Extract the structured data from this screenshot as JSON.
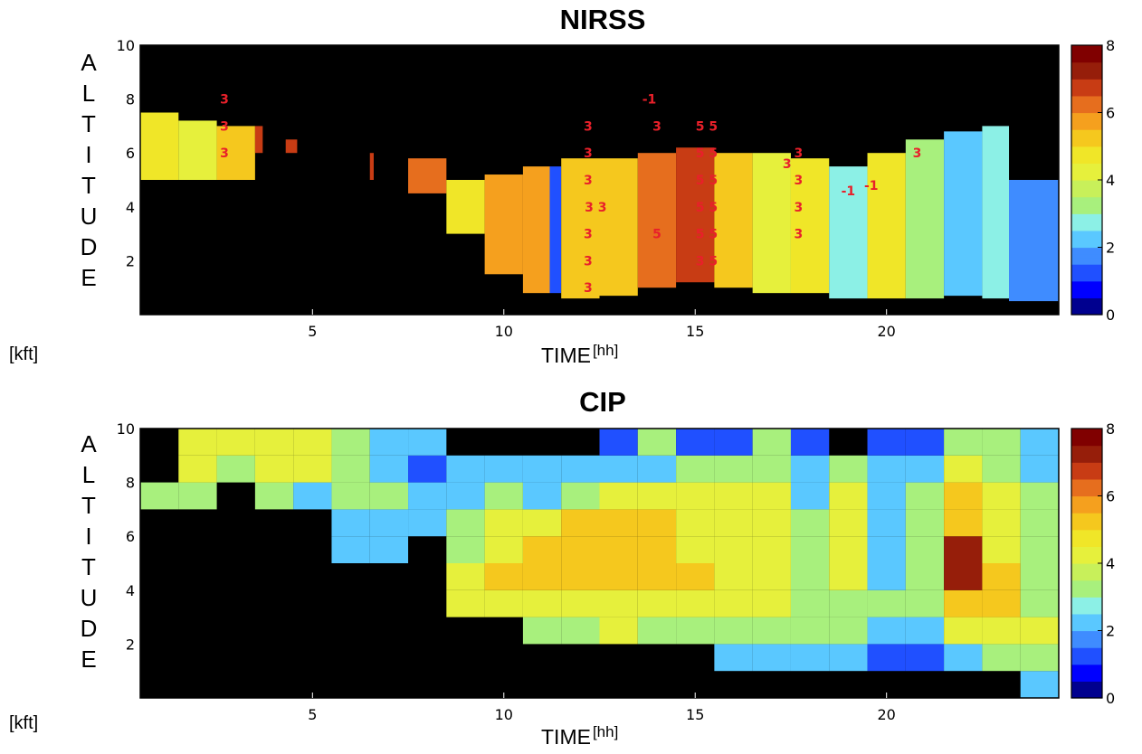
{
  "colors": {
    "background": "#000000",
    "text": "#000000",
    "annotation": "#e8202a"
  },
  "colormap": [
    "#00008f",
    "#0000ff",
    "#2050ff",
    "#3f8cff",
    "#5ac8ff",
    "#8cf0e6",
    "#a8f07d",
    "#c8f05a",
    "#e6f03c",
    "#f0e628",
    "#f5c81e",
    "#f5a01e",
    "#e66e1e",
    "#c83c14",
    "#961e0a",
    "#800000"
  ],
  "figure": {
    "ylabel_letters": [
      "A",
      "L",
      "T",
      "I",
      "T",
      "U",
      "D",
      "E"
    ],
    "yunit": "[kft]",
    "xlabel": "TIME",
    "xunit": "[hh]"
  },
  "chart_data": [
    {
      "type": "heatmap",
      "title": "NIRSS",
      "xlabel": "TIME [hh]",
      "ylabel": "ALTITUDE [kft]",
      "xlim": [
        0.5,
        24.5
      ],
      "ylim": [
        0,
        10
      ],
      "xticks": [
        5,
        10,
        15,
        20
      ],
      "yticks": [
        2,
        4,
        6,
        8,
        10
      ],
      "grid": false,
      "colorbar": {
        "range": [
          0,
          8
        ],
        "ticks": [
          0,
          2,
          4,
          6,
          8
        ],
        "placement": "right"
      },
      "profile_columns": [
        {
          "x0": 0.5,
          "x1": 1.5,
          "base": 5.0,
          "top": 7.5,
          "value": 4.5
        },
        {
          "x0": 1.5,
          "x1": 2.5,
          "base": 5.0,
          "top": 7.2,
          "value": 4.3
        },
        {
          "x0": 2.5,
          "x1": 3.5,
          "base": 5.0,
          "top": 7.0,
          "value": 5.3
        },
        {
          "x0": 3.5,
          "x1": 3.7,
          "base": 6.0,
          "top": 7.0,
          "value": 6.5
        },
        {
          "x0": 4.3,
          "x1": 4.6,
          "base": 6.0,
          "top": 6.5,
          "value": 6.8
        },
        {
          "x0": 6.5,
          "x1": 6.6,
          "base": 5.0,
          "top": 6.0,
          "value": 6.5
        },
        {
          "x0": 7.5,
          "x1": 8.5,
          "base": 4.5,
          "top": 5.8,
          "value": 6.3
        },
        {
          "x0": 8.5,
          "x1": 9.5,
          "base": 3.0,
          "top": 5.0,
          "value": 4.8
        },
        {
          "x0": 9.5,
          "x1": 10.5,
          "base": 1.5,
          "top": 5.2,
          "value": 5.5
        },
        {
          "x0": 10.5,
          "x1": 11.2,
          "base": 0.8,
          "top": 5.5,
          "value": 5.5
        },
        {
          "x0": 11.2,
          "x1": 11.5,
          "base": 0.8,
          "top": 5.5,
          "value": 1.0
        },
        {
          "x0": 11.5,
          "x1": 12.5,
          "base": 0.6,
          "top": 5.8,
          "value": 5.0
        },
        {
          "x0": 12.5,
          "x1": 13.5,
          "base": 0.7,
          "top": 5.8,
          "value": 5.0
        },
        {
          "x0": 13.5,
          "x1": 14.5,
          "base": 1.0,
          "top": 6.0,
          "value": 6.2
        },
        {
          "x0": 14.5,
          "x1": 15.5,
          "base": 1.2,
          "top": 6.2,
          "value": 6.5
        },
        {
          "x0": 15.5,
          "x1": 16.5,
          "base": 1.0,
          "top": 6.0,
          "value": 5.0
        },
        {
          "x0": 16.5,
          "x1": 17.5,
          "base": 0.8,
          "top": 6.0,
          "value": 4.2
        },
        {
          "x0": 17.5,
          "x1": 18.5,
          "base": 0.8,
          "top": 5.8,
          "value": 4.8
        },
        {
          "x0": 18.5,
          "x1": 19.5,
          "base": 0.6,
          "top": 5.5,
          "value": 2.5
        },
        {
          "x0": 19.5,
          "x1": 20.5,
          "base": 0.6,
          "top": 6.0,
          "value": 4.5
        },
        {
          "x0": 20.5,
          "x1": 21.5,
          "base": 0.6,
          "top": 6.5,
          "value": 3.0
        },
        {
          "x0": 21.5,
          "x1": 22.5,
          "base": 0.7,
          "top": 6.8,
          "value": 2.0
        },
        {
          "x0": 22.5,
          "x1": 23.2,
          "base": 0.6,
          "top": 7.0,
          "value": 2.8
        },
        {
          "x0": 23.2,
          "x1": 24.5,
          "base": 0.5,
          "top": 5.0,
          "value": 1.8
        }
      ],
      "annotations": [
        {
          "text": "3",
          "x": 2.7,
          "y": 8
        },
        {
          "text": "3",
          "x": 2.7,
          "y": 7
        },
        {
          "text": "3",
          "x": 2.7,
          "y": 6
        },
        {
          "text": "-1",
          "x": 13.8,
          "y": 8
        },
        {
          "text": "3",
          "x": 12.2,
          "y": 7
        },
        {
          "text": "3",
          "x": 14.0,
          "y": 7
        },
        {
          "text": "5 5",
          "x": 15.3,
          "y": 7
        },
        {
          "text": "3",
          "x": 12.2,
          "y": 6
        },
        {
          "text": "5 5",
          "x": 15.3,
          "y": 6
        },
        {
          "text": "3",
          "x": 17.7,
          "y": 6
        },
        {
          "text": "3",
          "x": 17.4,
          "y": 5.6
        },
        {
          "text": "3",
          "x": 20.8,
          "y": 6
        },
        {
          "text": "3",
          "x": 12.2,
          "y": 5
        },
        {
          "text": "5 5",
          "x": 15.3,
          "y": 5
        },
        {
          "text": "3",
          "x": 17.7,
          "y": 5
        },
        {
          "text": "-1",
          "x": 19.0,
          "y": 4.6
        },
        {
          "text": "-1",
          "x": 19.6,
          "y": 4.8
        },
        {
          "text": "3 3",
          "x": 12.4,
          "y": 4
        },
        {
          "text": "5 5",
          "x": 15.3,
          "y": 4
        },
        {
          "text": "3",
          "x": 17.7,
          "y": 4
        },
        {
          "text": "3",
          "x": 12.2,
          "y": 3
        },
        {
          "text": "5",
          "x": 14.0,
          "y": 3
        },
        {
          "text": "5 5",
          "x": 15.3,
          "y": 3
        },
        {
          "text": "3",
          "x": 17.7,
          "y": 3
        },
        {
          "text": "3",
          "x": 12.2,
          "y": 2
        },
        {
          "text": "3 5",
          "x": 15.3,
          "y": 2
        },
        {
          "text": "3",
          "x": 12.2,
          "y": 1
        }
      ]
    },
    {
      "type": "heatmap",
      "title": "CIP",
      "xlabel": "TIME [hh]",
      "ylabel": "ALTITUDE [kft]",
      "xlim": [
        0.5,
        24.5
      ],
      "ylim": [
        0,
        10
      ],
      "xticks": [
        5,
        10,
        15,
        20
      ],
      "yticks": [
        2,
        4,
        6,
        8,
        10
      ],
      "grid": false,
      "colorbar": {
        "range": [
          0,
          8
        ],
        "ticks": [
          0,
          2,
          4,
          6,
          8
        ],
        "placement": "right"
      },
      "x_centers": [
        1,
        2,
        3,
        4,
        5,
        6,
        7,
        8,
        9,
        10,
        11,
        12,
        13,
        14,
        15,
        16,
        17,
        18,
        19,
        20,
        21,
        22,
        23,
        24
      ],
      "y_centers": [
        0.5,
        1.5,
        2.5,
        3.5,
        4.5,
        5.5,
        6.5,
        7.5,
        8.5,
        9.5
      ],
      "values": [
        [
          null,
          null,
          null,
          null,
          null,
          null,
          null,
          null,
          null,
          null,
          null,
          null,
          null,
          null,
          null,
          null,
          null,
          null,
          null,
          null,
          null,
          null,
          null,
          2
        ],
        [
          null,
          null,
          null,
          null,
          null,
          null,
          null,
          null,
          null,
          null,
          null,
          null,
          null,
          null,
          null,
          2,
          2,
          2,
          2,
          1,
          1,
          2,
          3,
          3
        ],
        [
          null,
          null,
          null,
          null,
          null,
          null,
          null,
          null,
          null,
          null,
          3,
          3,
          4,
          3,
          3,
          3,
          3,
          3,
          3,
          2,
          2,
          4,
          4,
          4
        ],
        [
          null,
          null,
          null,
          null,
          null,
          null,
          null,
          null,
          4,
          4,
          4,
          4,
          4,
          4,
          4,
          4,
          4,
          3,
          3,
          3,
          3,
          5,
          5,
          3
        ],
        [
          null,
          null,
          null,
          null,
          null,
          null,
          null,
          null,
          4,
          5,
          5,
          5,
          5,
          5,
          5,
          4,
          4,
          3,
          4,
          2,
          3,
          7,
          5,
          3
        ],
        [
          null,
          null,
          null,
          null,
          null,
          2,
          2,
          null,
          3,
          4,
          5,
          5,
          5,
          5,
          4,
          4,
          4,
          3,
          4,
          2,
          3,
          7,
          4,
          3
        ],
        [
          null,
          null,
          null,
          null,
          null,
          2,
          2,
          2,
          3,
          4,
          4,
          5,
          5,
          5,
          4,
          4,
          4,
          3,
          4,
          2,
          3,
          5,
          4,
          3
        ],
        [
          3,
          3,
          null,
          3,
          2,
          3,
          3,
          2,
          2,
          3,
          2,
          3,
          4,
          4,
          4,
          4,
          4,
          2,
          4,
          2,
          3,
          5,
          4,
          3
        ],
        [
          null,
          4,
          3,
          4,
          4,
          3,
          2,
          1,
          2,
          2,
          2,
          2,
          2,
          2,
          3,
          3,
          3,
          2,
          3,
          2,
          2,
          4,
          3,
          2
        ],
        [
          null,
          4,
          4,
          4,
          4,
          3,
          2,
          2,
          null,
          null,
          null,
          null,
          1,
          3,
          1,
          1,
          3,
          1,
          null,
          1,
          1,
          3,
          3,
          2
        ]
      ]
    }
  ]
}
